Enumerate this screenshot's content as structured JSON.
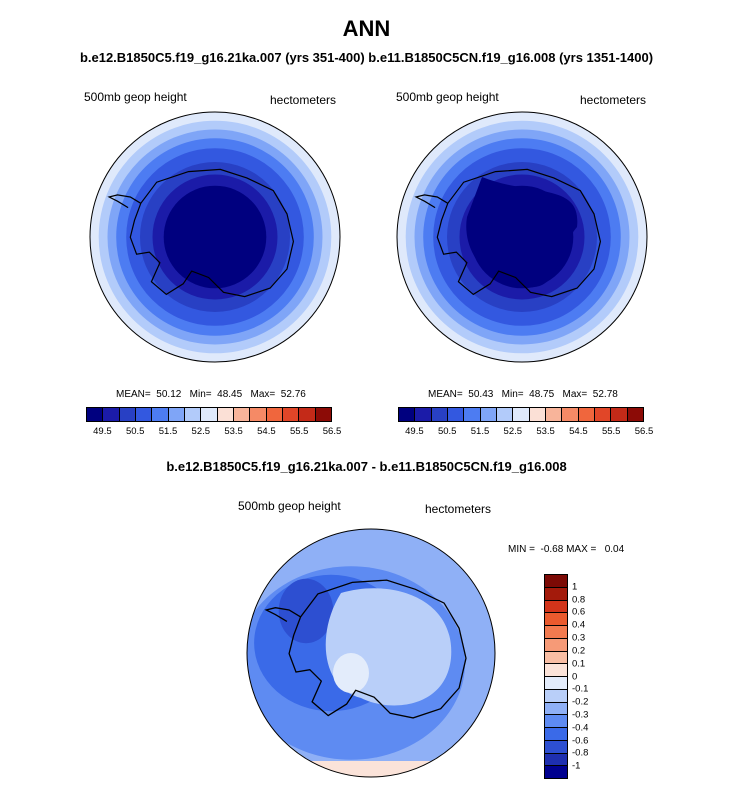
{
  "title": "ANN",
  "subtitle": "b.e12.B1850C5.f19_g16.21ka.007 (yrs 351-400) b.e11.B1850C5CN.f19_g16.008 (yrs 1351-1400)",
  "diff_title": "b.e12.B1850C5.f19_g16.21ka.007 - b.e11.B1850C5CN.f19_g16.008",
  "colors": {
    "abs_levels": [
      "#00007f",
      "#1b1ba8",
      "#2840c4",
      "#3358e0",
      "#4d7cf2",
      "#7fa5f7",
      "#b2cbfa",
      "#dfe9fb",
      "#fbe0d6",
      "#f8b49a",
      "#f58a66",
      "#f0663d",
      "#e14628",
      "#c42a18",
      "#8c0b06"
    ],
    "diff_levels": [
      "#00008f",
      "#1e2fb0",
      "#2d4fd1",
      "#3a6ae8",
      "#5e8bf2",
      "#8fb0f6",
      "#b9cff9",
      "#e3ecfb",
      "#fbe3d9",
      "#f9bea4",
      "#f69a77",
      "#f27a4f",
      "#ea5a2e",
      "#d2341a",
      "#a31a0b",
      "#7c0a05"
    ]
  },
  "chart_data": [
    {
      "type": "heatmap",
      "panel": "left",
      "variable_label": "500mb geop height",
      "units_label": "hectometers",
      "stats": {
        "mean": 50.12,
        "min": 48.45,
        "max": 52.76
      },
      "stats_text": "MEAN=  50.12   Min=  48.45   Max=  52.76",
      "colorbar_ticks": [
        "49.5",
        "50.5",
        "51.5",
        "52.5",
        "53.5",
        "54.5",
        "55.5",
        "56.5"
      ]
    },
    {
      "type": "heatmap",
      "panel": "right",
      "variable_label": "500mb geop height",
      "units_label": "hectometers",
      "stats": {
        "mean": 50.43,
        "min": 48.75,
        "max": 52.78
      },
      "stats_text": "MEAN=  50.43   Min=  48.75   Max=  52.78",
      "colorbar_ticks": [
        "49.5",
        "50.5",
        "51.5",
        "52.5",
        "53.5",
        "54.5",
        "55.5",
        "56.5"
      ]
    },
    {
      "type": "heatmap",
      "panel": "difference",
      "variable_label": "500mb geop height",
      "units_label": "hectometers",
      "stats": {
        "min": -0.68,
        "max": 0.04
      },
      "stats_text": "MIN =  -0.68 MAX =   0.04",
      "colorbar_ticks": [
        "1",
        "0.8",
        "0.6",
        "0.4",
        "0.3",
        "0.2",
        "0.1",
        "0",
        "-0.1",
        "-0.2",
        "-0.3",
        "-0.4",
        "-0.6",
        "-0.8",
        "-1"
      ]
    }
  ]
}
